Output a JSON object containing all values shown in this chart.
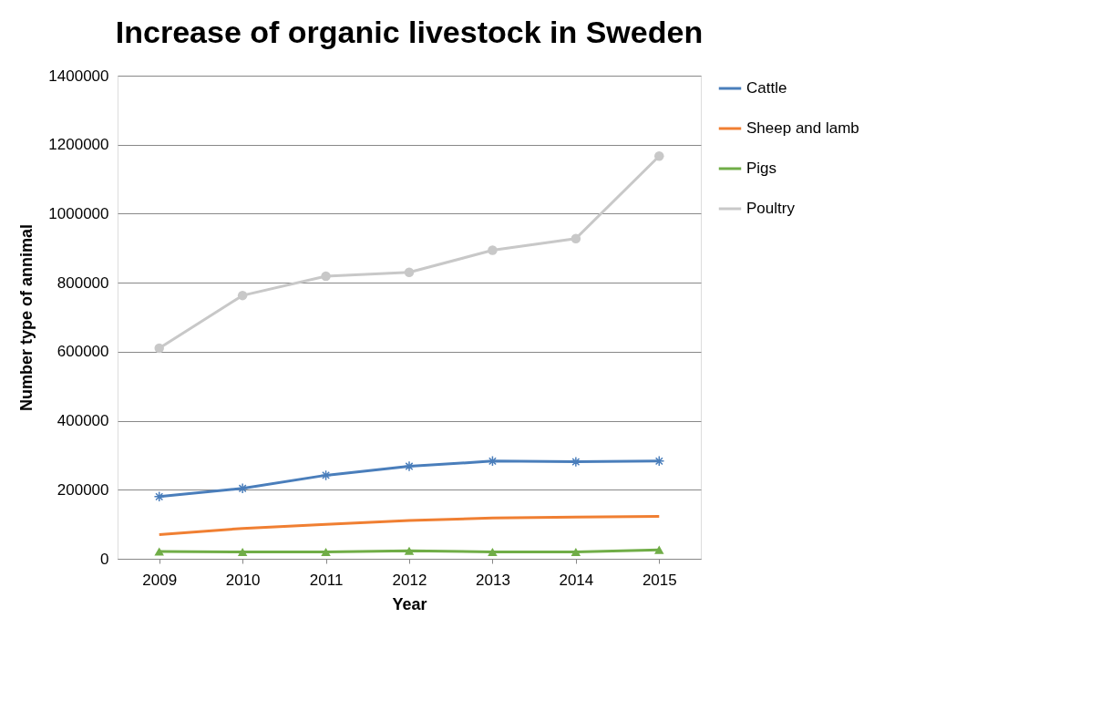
{
  "chart_data": {
    "type": "line",
    "title": "Increase of organic livestock in Sweden",
    "xlabel": "Year",
    "ylabel": "Number type of annimal",
    "categories": [
      "2009",
      "2010",
      "2011",
      "2012",
      "2013",
      "2014",
      "2015"
    ],
    "series": [
      {
        "name": "Cattle",
        "color": "#4a7ebb",
        "marker": "cross",
        "values": [
          180000,
          204000,
          242000,
          268000,
          283000,
          281000,
          283000
        ]
      },
      {
        "name": "Sheep and lamb",
        "color": "#f07f32",
        "marker": "none",
        "values": [
          70000,
          88000,
          100000,
          111000,
          118000,
          121000,
          123000
        ]
      },
      {
        "name": "Pigs",
        "color": "#70ad47",
        "marker": "triangle",
        "values": [
          21000,
          20000,
          20000,
          23000,
          20000,
          20000,
          26000
        ]
      },
      {
        "name": "Poultry",
        "color": "#c8c8c8",
        "marker": "circle",
        "values": [
          610000,
          763000,
          819000,
          830000,
          894000,
          928000,
          1167000
        ]
      }
    ],
    "ylim": [
      0,
      1400000
    ],
    "yticks": [
      0,
      200000,
      400000,
      600000,
      800000,
      1000000,
      1200000,
      1400000
    ],
    "grid": "y",
    "legend": "right",
    "line_style": "solid"
  }
}
